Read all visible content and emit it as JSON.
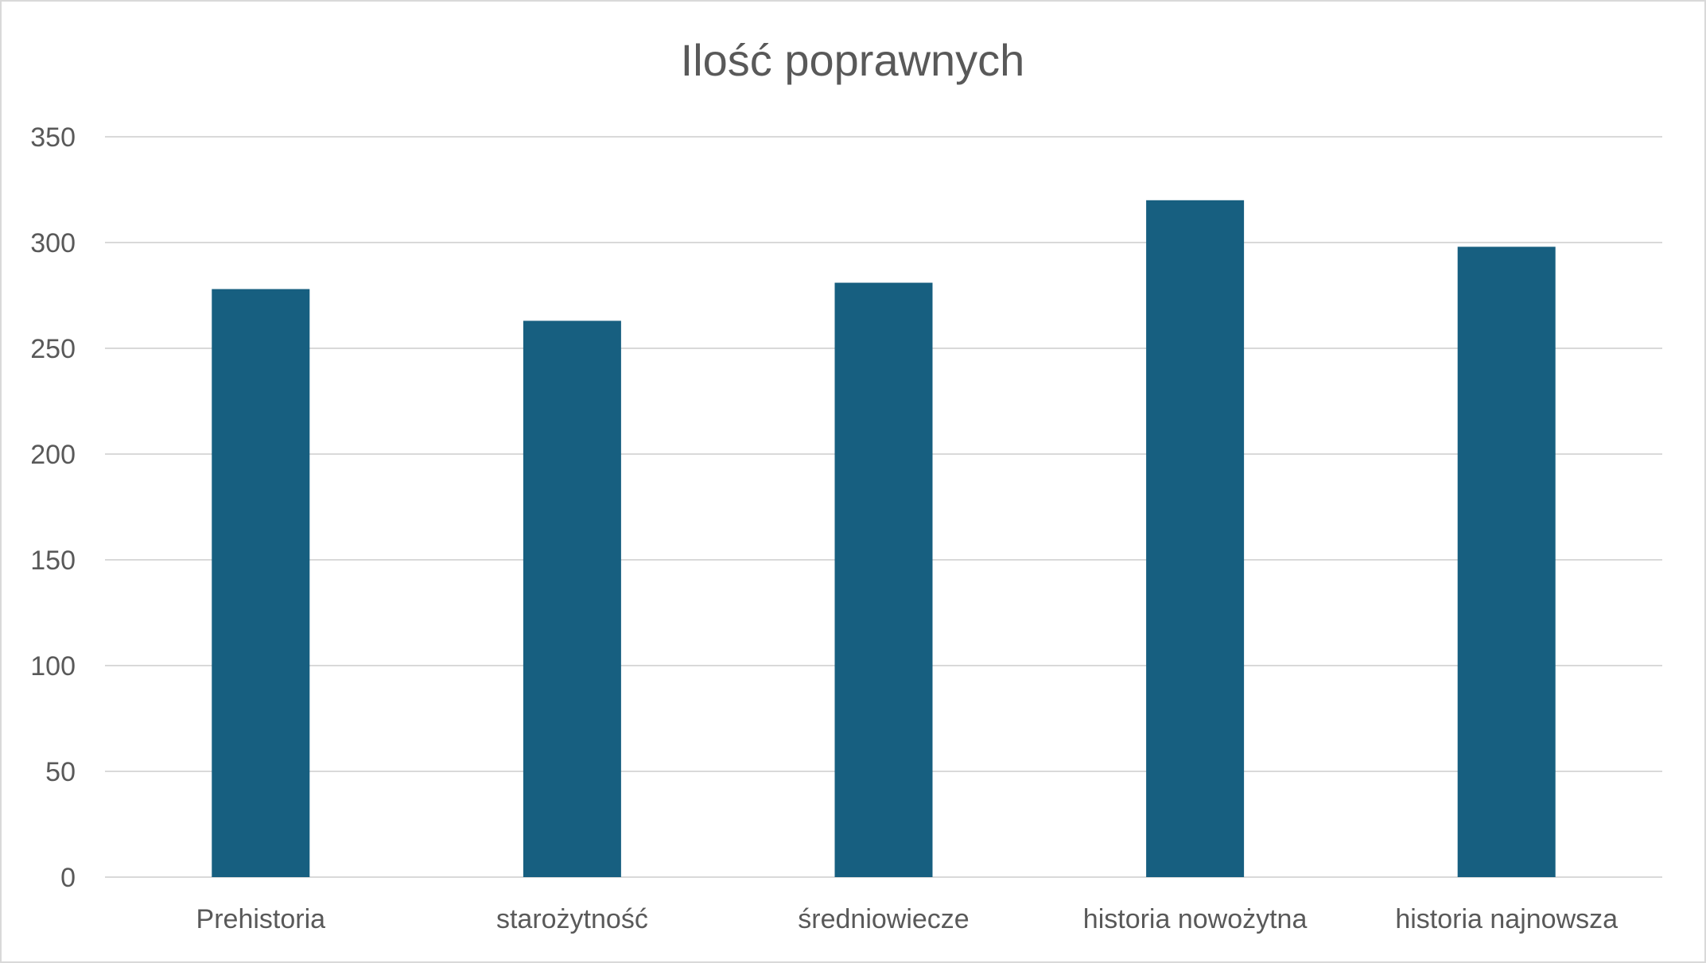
{
  "chart_data": {
    "type": "bar",
    "title": "Ilość poprawnych",
    "xlabel": "",
    "ylabel": "",
    "categories": [
      "Prehistoria",
      "starożytność",
      "średniowiecze",
      "historia nowożytna",
      "historia najnowsza"
    ],
    "values": [
      278,
      263,
      281,
      320,
      298
    ],
    "ylim": [
      0,
      350
    ],
    "yticks": [
      0,
      50,
      100,
      150,
      200,
      250,
      300,
      350
    ],
    "grid": true,
    "legend": "none",
    "colors": {
      "bar": "#175f80",
      "grid": "#d9d9d9",
      "text": "#595959"
    }
  }
}
